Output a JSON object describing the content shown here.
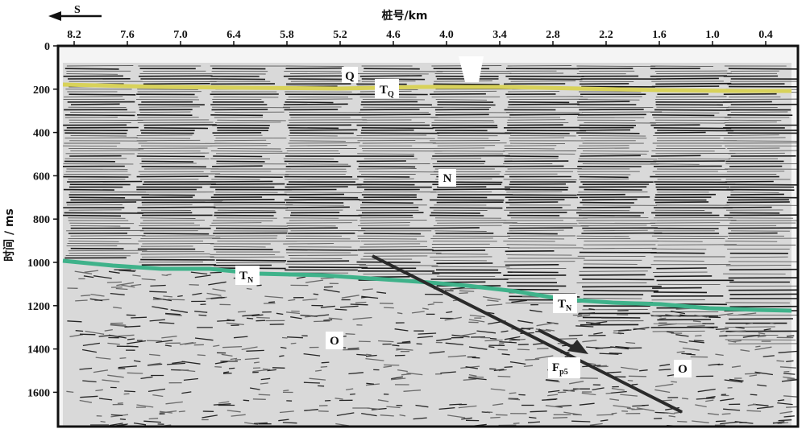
{
  "direction_label": "S",
  "x_axis_title": "桩号/km",
  "y_axis_title": "时间 / ms",
  "x_ticks": [
    "8.2",
    "7.6",
    "7.0",
    "6.4",
    "5.8",
    "5.2",
    "4.6",
    "4.0",
    "3.4",
    "2.8",
    "2.2",
    "1.6",
    "1.0",
    "0.4"
  ],
  "y_ticks": [
    "0",
    "200",
    "400",
    "600",
    "800",
    "1000",
    "1200",
    "1400",
    "1600"
  ],
  "labels": {
    "q": "Q",
    "tq_main": "T",
    "tq_sub": "Q",
    "n": "N",
    "tn_left_main": "T",
    "tn_left_sub": "N",
    "tn_right_main": "T",
    "tn_right_sub": "N",
    "o_left": "O",
    "o_right": "O",
    "fault_main": "F",
    "fault_sub": "p5"
  },
  "colors": {
    "tq_horizon": "#d8d25a",
    "tn_horizon": "#3fb28a",
    "fault": "#2a2a2a",
    "seismic_background": "#d9d9d9"
  },
  "icons": {
    "direction_arrow": "left-arrow-icon"
  }
}
